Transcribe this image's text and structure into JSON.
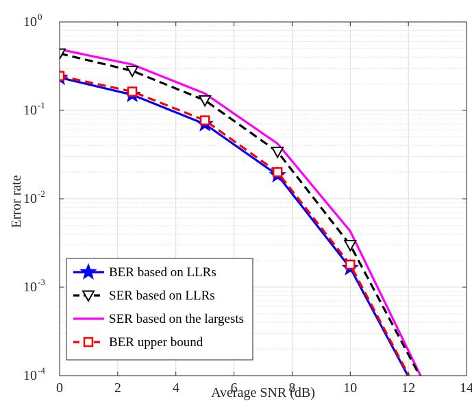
{
  "chart_data": {
    "type": "line",
    "xlabel": "Average SNR (dB)",
    "ylabel": "Error rate",
    "xlim": [
      0,
      14
    ],
    "ylim": [
      0.0001,
      1
    ],
    "yscale": "log",
    "grid": true,
    "minor_grid": true,
    "legend_position": "bottom-left",
    "x_ticks": [
      0,
      2,
      4,
      6,
      8,
      10,
      12,
      14
    ],
    "x_tick_labels": [
      "0",
      "2",
      "4",
      "6",
      "8",
      "10",
      "12",
      "14"
    ],
    "y_ticks": [
      {
        "value": 0.0001,
        "base": "10",
        "exp": "-4"
      },
      {
        "value": 0.001,
        "base": "10",
        "exp": "-3"
      },
      {
        "value": 0.01,
        "base": "10",
        "exp": "-2"
      },
      {
        "value": 0.1,
        "base": "10",
        "exp": "-1"
      },
      {
        "value": 1,
        "base": "10",
        "exp": "0"
      }
    ],
    "series": [
      {
        "name": "BER based on LLRs",
        "color": "#0000ff",
        "dash": "solid",
        "marker": "star",
        "x": [
          0,
          2.5,
          5,
          7.5,
          10,
          12.5
        ],
        "y": [
          0.235,
          0.15,
          0.07,
          0.0185,
          0.00165,
          4.8e-05
        ]
      },
      {
        "name": "SER based on LLRs",
        "color": "#000000",
        "dash": "dashed",
        "marker": "triangle-down",
        "x": [
          0,
          2.5,
          5,
          7.5,
          10,
          12.5
        ],
        "y": [
          0.44,
          0.28,
          0.13,
          0.034,
          0.003,
          8.5e-05
        ]
      },
      {
        "name": "SER based on the largests",
        "color": "#ff00ff",
        "dash": "solid",
        "marker": "none",
        "x": [
          0,
          2.5,
          5,
          7.5,
          10,
          12.5
        ],
        "y": [
          0.49,
          0.33,
          0.155,
          0.042,
          0.0043,
          8.8e-05
        ]
      },
      {
        "name": "BER upper bound",
        "color": "#ff0000",
        "dash": "dashed",
        "marker": "square",
        "x": [
          0,
          2.5,
          5,
          7.5,
          10,
          12.5
        ],
        "y": [
          0.245,
          0.163,
          0.077,
          0.02,
          0.0018,
          5e-05
        ]
      }
    ]
  }
}
